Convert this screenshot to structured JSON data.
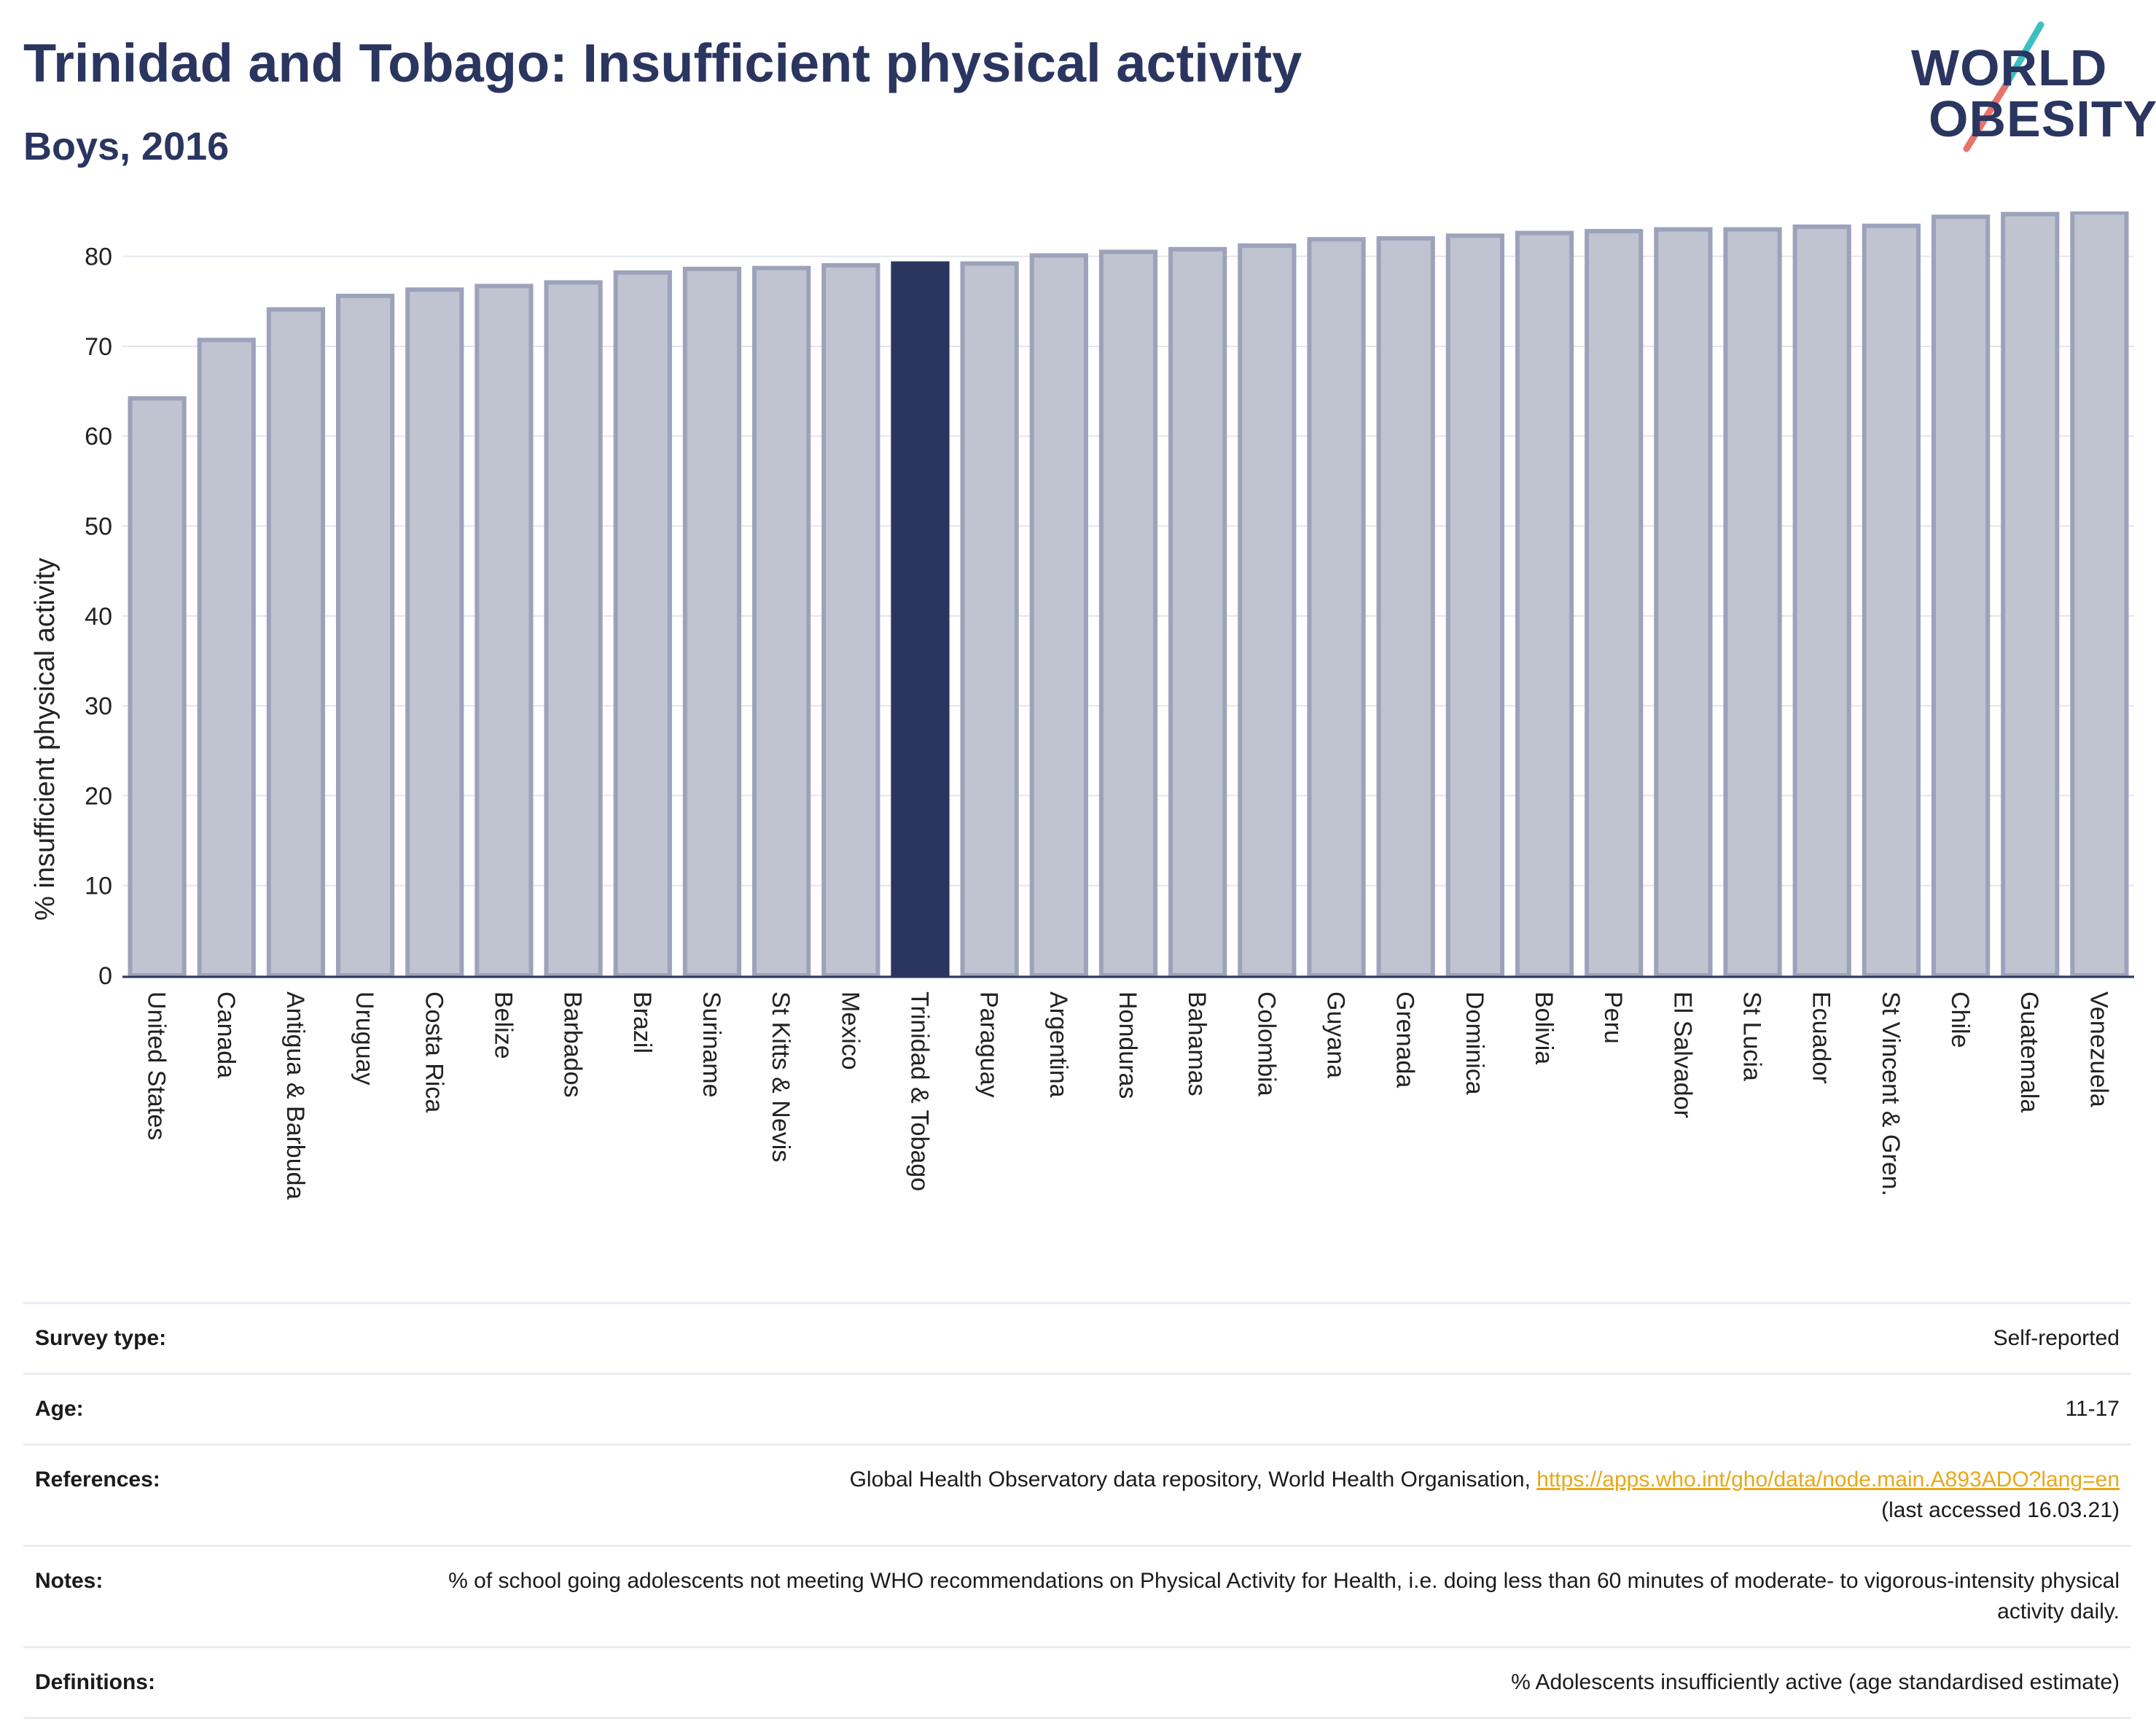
{
  "header": {
    "title": "Trinidad and Tobago: Insufficient physical activity",
    "subtitle": "Boys, 2016"
  },
  "logo": {
    "line1": "WORLD",
    "line2": "OBESITY",
    "colors": {
      "text": "#2a3560",
      "slash_top": "#3bbfbf",
      "slash_bottom": "#e8736a"
    }
  },
  "colors": {
    "bar_fill": "#c0c3d0",
    "bar_stroke": "#9da2bb",
    "highlight_fill": "#2a3560",
    "axis": "#2a3560",
    "grid": "#e3e6ee",
    "link": "#e8a817"
  },
  "chart_data": {
    "type": "bar",
    "title": "",
    "xlabel": "",
    "ylabel": "% insufficient physical activity",
    "ylim": [
      0,
      85
    ],
    "yticks": [
      0,
      10,
      20,
      30,
      40,
      50,
      60,
      70,
      80
    ],
    "grid": true,
    "highlight": "Trinidad & Tobago",
    "categories": [
      "United States",
      "Canada",
      "Antigua & Barbuda",
      "Uruguay",
      "Costa Rica",
      "Belize",
      "Barbados",
      "Brazil",
      "Suriname",
      "St Kitts & Nevis",
      "Mexico",
      "Trinidad & Tobago",
      "Paraguay",
      "Argentina",
      "Honduras",
      "Bahamas",
      "Colombia",
      "Guyana",
      "Grenada",
      "Dominica",
      "Bolivia",
      "Peru",
      "El Salvador",
      "St Lucia",
      "Ecuador",
      "St Vincent & Gren.",
      "Chile",
      "Guatemala",
      "Venezuela"
    ],
    "values": [
      64.2,
      70.7,
      74.1,
      75.6,
      76.3,
      76.7,
      77.1,
      78.2,
      78.6,
      78.7,
      79.0,
      79.2,
      79.2,
      80.1,
      80.5,
      80.8,
      81.2,
      81.9,
      82.0,
      82.3,
      82.6,
      82.8,
      83.0,
      83.0,
      83.3,
      83.4,
      84.4,
      84.7,
      84.9
    ]
  },
  "info": {
    "survey_type": {
      "label": "Survey type:",
      "value": "Self-reported"
    },
    "age": {
      "label": "Age:",
      "value": "11-17"
    },
    "references": {
      "label": "References:",
      "text": "Global Health Observatory data repository, World Health Organisation, ",
      "link": "https://apps.who.int/gho/data/node.main.A893ADO?lang=en",
      "accessed": "(last accessed 16.03.21)"
    },
    "notes": {
      "label": "Notes:",
      "value": "% of school going adolescents not meeting WHO recommendations on Physical Activity for Health, i.e. doing less than 60 minutes of moderate- to vigorous-intensity physical activity daily."
    },
    "definitions": {
      "label": "Definitions:",
      "value": "% Adolescents insufficiently active (age standardised estimate)"
    }
  }
}
